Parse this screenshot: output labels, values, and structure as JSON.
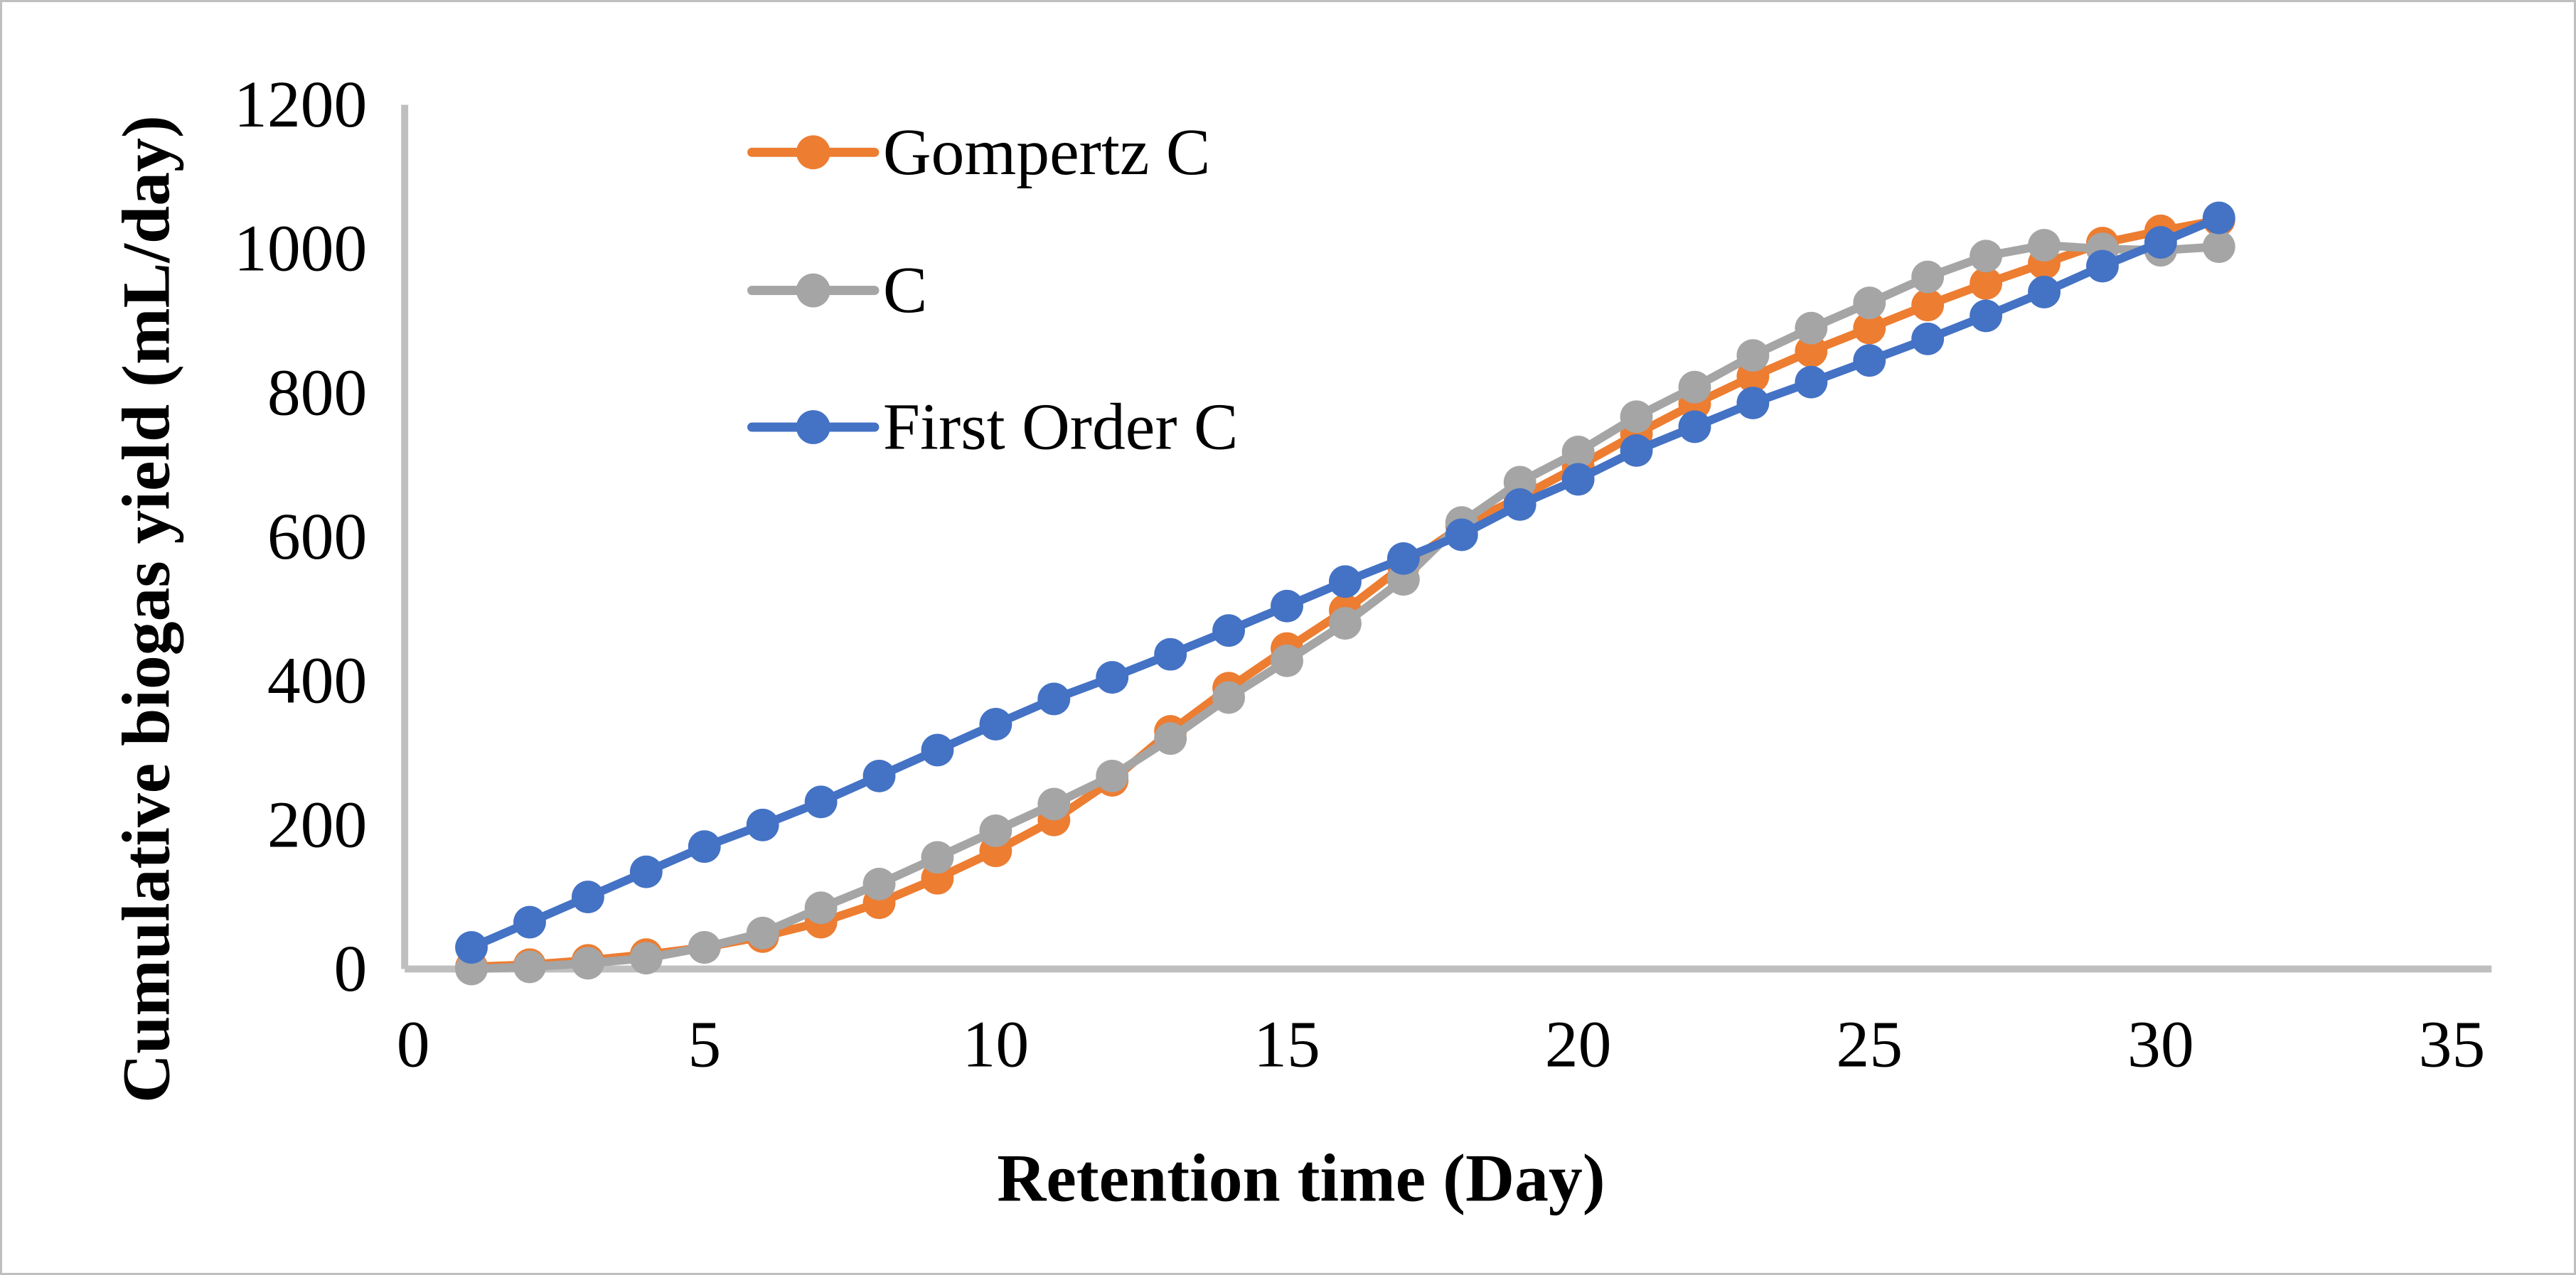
{
  "figure": {
    "kind": "excel-style line chart",
    "background": "#ffffff",
    "border_color": "#bfbfbf",
    "axis_color": "#bfbfbf",
    "text_color": "#000000"
  },
  "chart_data": {
    "type": "line",
    "title": "",
    "xlabel": "Retention time (Day)",
    "ylabel": "Cumulative biogas yield (mL/day)",
    "xlim": [
      0,
      35
    ],
    "ylim": [
      0,
      1200
    ],
    "x_ticks": [
      0,
      5,
      10,
      15,
      20,
      25,
      30,
      35
    ],
    "y_ticks": [
      0,
      200,
      400,
      600,
      800,
      1000,
      1200
    ],
    "grid": false,
    "legend_position": "inside-top-left",
    "marker": "circle",
    "x": [
      1,
      2,
      3,
      4,
      5,
      6,
      7,
      8,
      9,
      10,
      11,
      12,
      13,
      14,
      15,
      16,
      17,
      18,
      19,
      20,
      21,
      22,
      23,
      24,
      25,
      26,
      27,
      28,
      29,
      30,
      31
    ],
    "series": [
      {
        "name": "Gompertz C",
        "color": "#ED7D31",
        "values": [
          3,
          6,
          12,
          20,
          30,
          45,
          65,
          92,
          126,
          164,
          207,
          262,
          330,
          390,
          445,
          498,
          560,
          615,
          655,
          698,
          743,
          785,
          823,
          858,
          890,
          922,
          952,
          980,
          1008,
          1025,
          1040
        ]
      },
      {
        "name": "C",
        "color": "#A5A5A5",
        "values": [
          0,
          3,
          8,
          15,
          30,
          50,
          85,
          118,
          155,
          192,
          229,
          268,
          320,
          377,
          428,
          480,
          541,
          620,
          676,
          718,
          767,
          808,
          852,
          890,
          925,
          961,
          990,
          1005,
          1000,
          998,
          1003
        ]
      },
      {
        "name": "First Order C",
        "color": "#4472C4",
        "values": [
          30,
          65,
          100,
          135,
          170,
          200,
          232,
          268,
          304,
          340,
          375,
          405,
          437,
          470,
          504,
          538,
          570,
          603,
          645,
          680,
          720,
          753,
          786,
          815,
          845,
          875,
          907,
          940,
          976,
          1009,
          1043
        ]
      }
    ]
  }
}
